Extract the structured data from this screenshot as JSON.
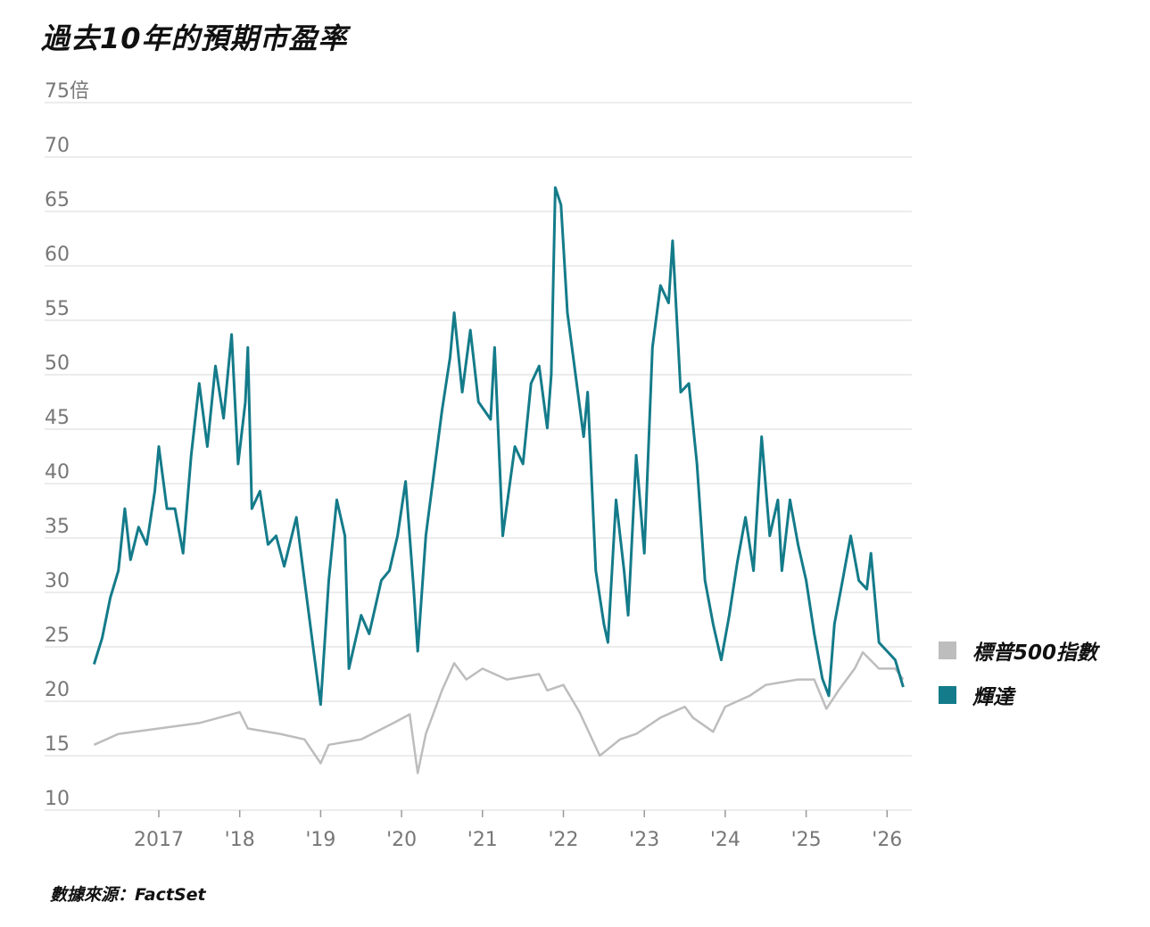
{
  "title": "過去10年的預期市盈率",
  "source": "數據來源：FactSet",
  "chart_data": {
    "type": "line",
    "ylim": [
      10,
      75
    ],
    "xlim": [
      2016.2,
      2026.25
    ],
    "grid": true,
    "legend_position": "right",
    "y_ticks": [
      {
        "value": 75,
        "label": "75倍"
      },
      {
        "value": 70,
        "label": "70"
      },
      {
        "value": 65,
        "label": "65"
      },
      {
        "value": 60,
        "label": "60"
      },
      {
        "value": 55,
        "label": "55"
      },
      {
        "value": 50,
        "label": "50"
      },
      {
        "value": 45,
        "label": "45"
      },
      {
        "value": 40,
        "label": "40"
      },
      {
        "value": 35,
        "label": "35"
      },
      {
        "value": 30,
        "label": "30"
      },
      {
        "value": 25,
        "label": "25"
      },
      {
        "value": 20,
        "label": "20"
      },
      {
        "value": 15,
        "label": "15"
      },
      {
        "value": 10,
        "label": "10"
      }
    ],
    "x_ticks": [
      {
        "value": 2017,
        "label": "2017"
      },
      {
        "value": 2018,
        "label": "'18"
      },
      {
        "value": 2019,
        "label": "'19"
      },
      {
        "value": 2020,
        "label": "'20"
      },
      {
        "value": 2021,
        "label": "'21"
      },
      {
        "value": 2022,
        "label": "'22"
      },
      {
        "value": 2023,
        "label": "'23"
      },
      {
        "value": 2024,
        "label": "'24"
      },
      {
        "value": 2025,
        "label": "'25"
      },
      {
        "value": 2026,
        "label": "'26"
      }
    ],
    "series": [
      {
        "name": "標普500指數",
        "color": "#bdbdbd",
        "points": [
          [
            2016.2,
            16.0
          ],
          [
            2016.5,
            17
          ],
          [
            2017.0,
            17.5
          ],
          [
            2017.5,
            18
          ],
          [
            2018.0,
            19
          ],
          [
            2018.1,
            17.5
          ],
          [
            2018.5,
            17
          ],
          [
            2018.8,
            16.5
          ],
          [
            2019.0,
            14.3
          ],
          [
            2019.1,
            16
          ],
          [
            2019.5,
            16.5
          ],
          [
            2019.9,
            18
          ],
          [
            2020.1,
            18.8
          ],
          [
            2020.2,
            13.4
          ],
          [
            2020.3,
            17
          ],
          [
            2020.5,
            21
          ],
          [
            2020.65,
            23.5
          ],
          [
            2020.8,
            22
          ],
          [
            2021.0,
            23
          ],
          [
            2021.3,
            22
          ],
          [
            2021.7,
            22.5
          ],
          [
            2021.8,
            21
          ],
          [
            2022.0,
            21.5
          ],
          [
            2022.2,
            19
          ],
          [
            2022.45,
            15
          ],
          [
            2022.7,
            16.5
          ],
          [
            2022.9,
            17
          ],
          [
            2023.2,
            18.5
          ],
          [
            2023.5,
            19.5
          ],
          [
            2023.6,
            18.5
          ],
          [
            2023.85,
            17.2
          ],
          [
            2024.0,
            19.5
          ],
          [
            2024.3,
            20.5
          ],
          [
            2024.5,
            21.5
          ],
          [
            2024.9,
            22
          ],
          [
            2025.1,
            22
          ],
          [
            2025.25,
            19.3
          ],
          [
            2025.4,
            21
          ],
          [
            2025.6,
            23
          ],
          [
            2025.7,
            24.5
          ],
          [
            2025.9,
            23
          ],
          [
            2026.1,
            23
          ],
          [
            2026.2,
            22
          ]
        ]
      },
      {
        "name": "輝達",
        "color": "#147b8a",
        "points": [
          [
            2016.2,
            23.4
          ],
          [
            2016.3,
            25.8
          ],
          [
            2016.4,
            29.5
          ],
          [
            2016.5,
            32
          ],
          [
            2016.58,
            37.7
          ],
          [
            2016.65,
            33
          ],
          [
            2016.75,
            36
          ],
          [
            2016.85,
            34.4
          ],
          [
            2016.95,
            39.3
          ],
          [
            2017.0,
            43.4
          ],
          [
            2017.1,
            37.7
          ],
          [
            2017.2,
            37.7
          ],
          [
            2017.3,
            33.6
          ],
          [
            2017.4,
            42.6
          ],
          [
            2017.5,
            49.2
          ],
          [
            2017.6,
            43.4
          ],
          [
            2017.7,
            50.8
          ],
          [
            2017.8,
            46
          ],
          [
            2017.9,
            53.7
          ],
          [
            2017.98,
            41.8
          ],
          [
            2018.07,
            47.5
          ],
          [
            2018.1,
            52.5
          ],
          [
            2018.15,
            37.7
          ],
          [
            2018.25,
            39.3
          ],
          [
            2018.35,
            34.4
          ],
          [
            2018.45,
            35.2
          ],
          [
            2018.55,
            32.4
          ],
          [
            2018.7,
            36.9
          ],
          [
            2018.8,
            31.1
          ],
          [
            2018.9,
            25.4
          ],
          [
            2019.0,
            19.7
          ],
          [
            2019.1,
            31.1
          ],
          [
            2019.2,
            38.5
          ],
          [
            2019.3,
            35.2
          ],
          [
            2019.35,
            23
          ],
          [
            2019.5,
            27.9
          ],
          [
            2019.6,
            26.2
          ],
          [
            2019.75,
            31.1
          ],
          [
            2019.85,
            32
          ],
          [
            2019.95,
            35.2
          ],
          [
            2020.05,
            40.2
          ],
          [
            2020.15,
            30.3
          ],
          [
            2020.2,
            24.6
          ],
          [
            2020.3,
            35.2
          ],
          [
            2020.4,
            41
          ],
          [
            2020.5,
            46.7
          ],
          [
            2020.6,
            51.6
          ],
          [
            2020.65,
            55.7
          ],
          [
            2020.75,
            48.4
          ],
          [
            2020.85,
            54.1
          ],
          [
            2020.95,
            47.5
          ],
          [
            2021.1,
            45.9
          ],
          [
            2021.15,
            52.5
          ],
          [
            2021.25,
            35.2
          ],
          [
            2021.4,
            43.4
          ],
          [
            2021.5,
            41.8
          ],
          [
            2021.6,
            49.2
          ],
          [
            2021.7,
            50.8
          ],
          [
            2021.8,
            45.1
          ],
          [
            2021.85,
            50
          ],
          [
            2021.9,
            67.2
          ],
          [
            2021.97,
            65.6
          ],
          [
            2022.05,
            55.7
          ],
          [
            2022.15,
            50
          ],
          [
            2022.25,
            44.3
          ],
          [
            2022.3,
            48.4
          ],
          [
            2022.4,
            32
          ],
          [
            2022.5,
            27.1
          ],
          [
            2022.55,
            25.4
          ],
          [
            2022.65,
            38.5
          ],
          [
            2022.75,
            32
          ],
          [
            2022.8,
            27.9
          ],
          [
            2022.9,
            42.6
          ],
          [
            2023.0,
            33.6
          ],
          [
            2023.1,
            52.5
          ],
          [
            2023.2,
            58.2
          ],
          [
            2023.3,
            56.6
          ],
          [
            2023.35,
            62.3
          ],
          [
            2023.45,
            48.4
          ],
          [
            2023.55,
            49.2
          ],
          [
            2023.65,
            41.8
          ],
          [
            2023.75,
            31.1
          ],
          [
            2023.85,
            27.1
          ],
          [
            2023.95,
            23.8
          ],
          [
            2024.05,
            27.9
          ],
          [
            2024.15,
            32.8
          ],
          [
            2024.25,
            36.9
          ],
          [
            2024.35,
            32
          ],
          [
            2024.45,
            44.3
          ],
          [
            2024.55,
            35.2
          ],
          [
            2024.65,
            38.5
          ],
          [
            2024.7,
            32
          ],
          [
            2024.8,
            38.5
          ],
          [
            2024.9,
            34.4
          ],
          [
            2025.0,
            31.1
          ],
          [
            2025.1,
            26.2
          ],
          [
            2025.2,
            22.1
          ],
          [
            2025.28,
            20.5
          ],
          [
            2025.35,
            27.1
          ],
          [
            2025.45,
            31.1
          ],
          [
            2025.55,
            35.2
          ],
          [
            2025.65,
            31.1
          ],
          [
            2025.75,
            30.3
          ],
          [
            2025.8,
            33.6
          ],
          [
            2025.9,
            25.4
          ],
          [
            2026.0,
            24.6
          ],
          [
            2026.1,
            23.8
          ],
          [
            2026.2,
            21.3
          ]
        ]
      }
    ]
  }
}
